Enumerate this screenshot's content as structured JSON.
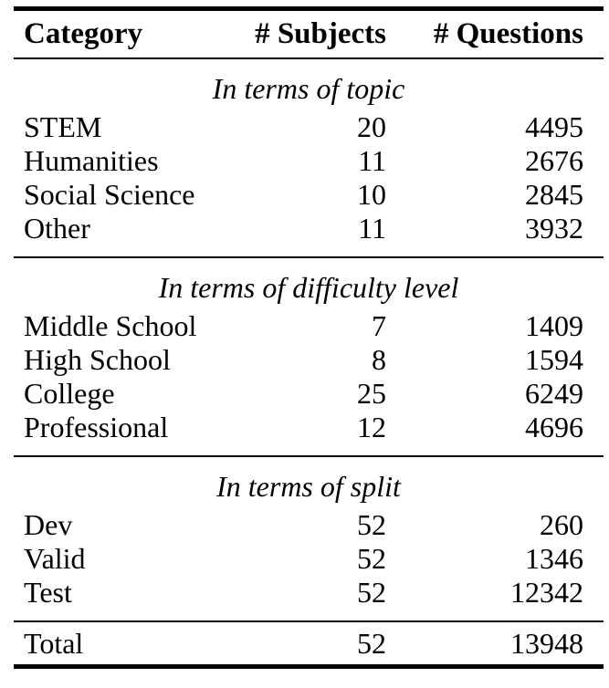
{
  "page": {
    "background_color": "#ffffff",
    "text_color": "#000000",
    "rule_color": "#000000"
  },
  "table": {
    "columns": [
      "Category",
      "# Subjects",
      "# Questions"
    ],
    "sections": [
      {
        "title": "In terms of topic",
        "rows": [
          [
            "STEM",
            "20",
            "4495"
          ],
          [
            "Humanities",
            "11",
            "2676"
          ],
          [
            "Social Science",
            "10",
            "2845"
          ],
          [
            "Other",
            "11",
            "3932"
          ]
        ]
      },
      {
        "title": "In terms of difficulty level",
        "rows": [
          [
            "Middle School",
            "7",
            "1409"
          ],
          [
            "High School",
            "8",
            "1594"
          ],
          [
            "College",
            "25",
            "6249"
          ],
          [
            "Professional",
            "12",
            "4696"
          ]
        ]
      },
      {
        "title": "In terms of split",
        "rows": [
          [
            "Dev",
            "52",
            "260"
          ],
          [
            "Valid",
            "52",
            "1346"
          ],
          [
            "Test",
            "52",
            "12342"
          ]
        ]
      }
    ],
    "total_row": [
      "Total",
      "52",
      "13948"
    ]
  }
}
